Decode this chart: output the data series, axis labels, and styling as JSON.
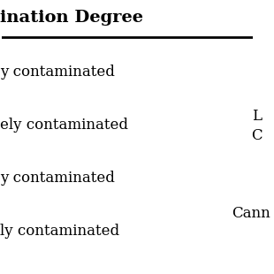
{
  "header_text": "ination Degree",
  "header_fontsize": 14,
  "header_fontweight": "bold",
  "row_labels": [
    "y contaminated",
    "ely contaminated",
    "y contaminated",
    "ly contaminated"
  ],
  "right_col_row2_line1": "L",
  "right_col_row2_line2": "C",
  "right_col_row4": "Cann",
  "row_fontsize": 12,
  "bg_color": "#ffffff",
  "text_color": "#000000",
  "line_color": "#000000",
  "header_line_lw": 1.5,
  "figsize": [
    3.1,
    3.1
  ],
  "dpi": 100
}
